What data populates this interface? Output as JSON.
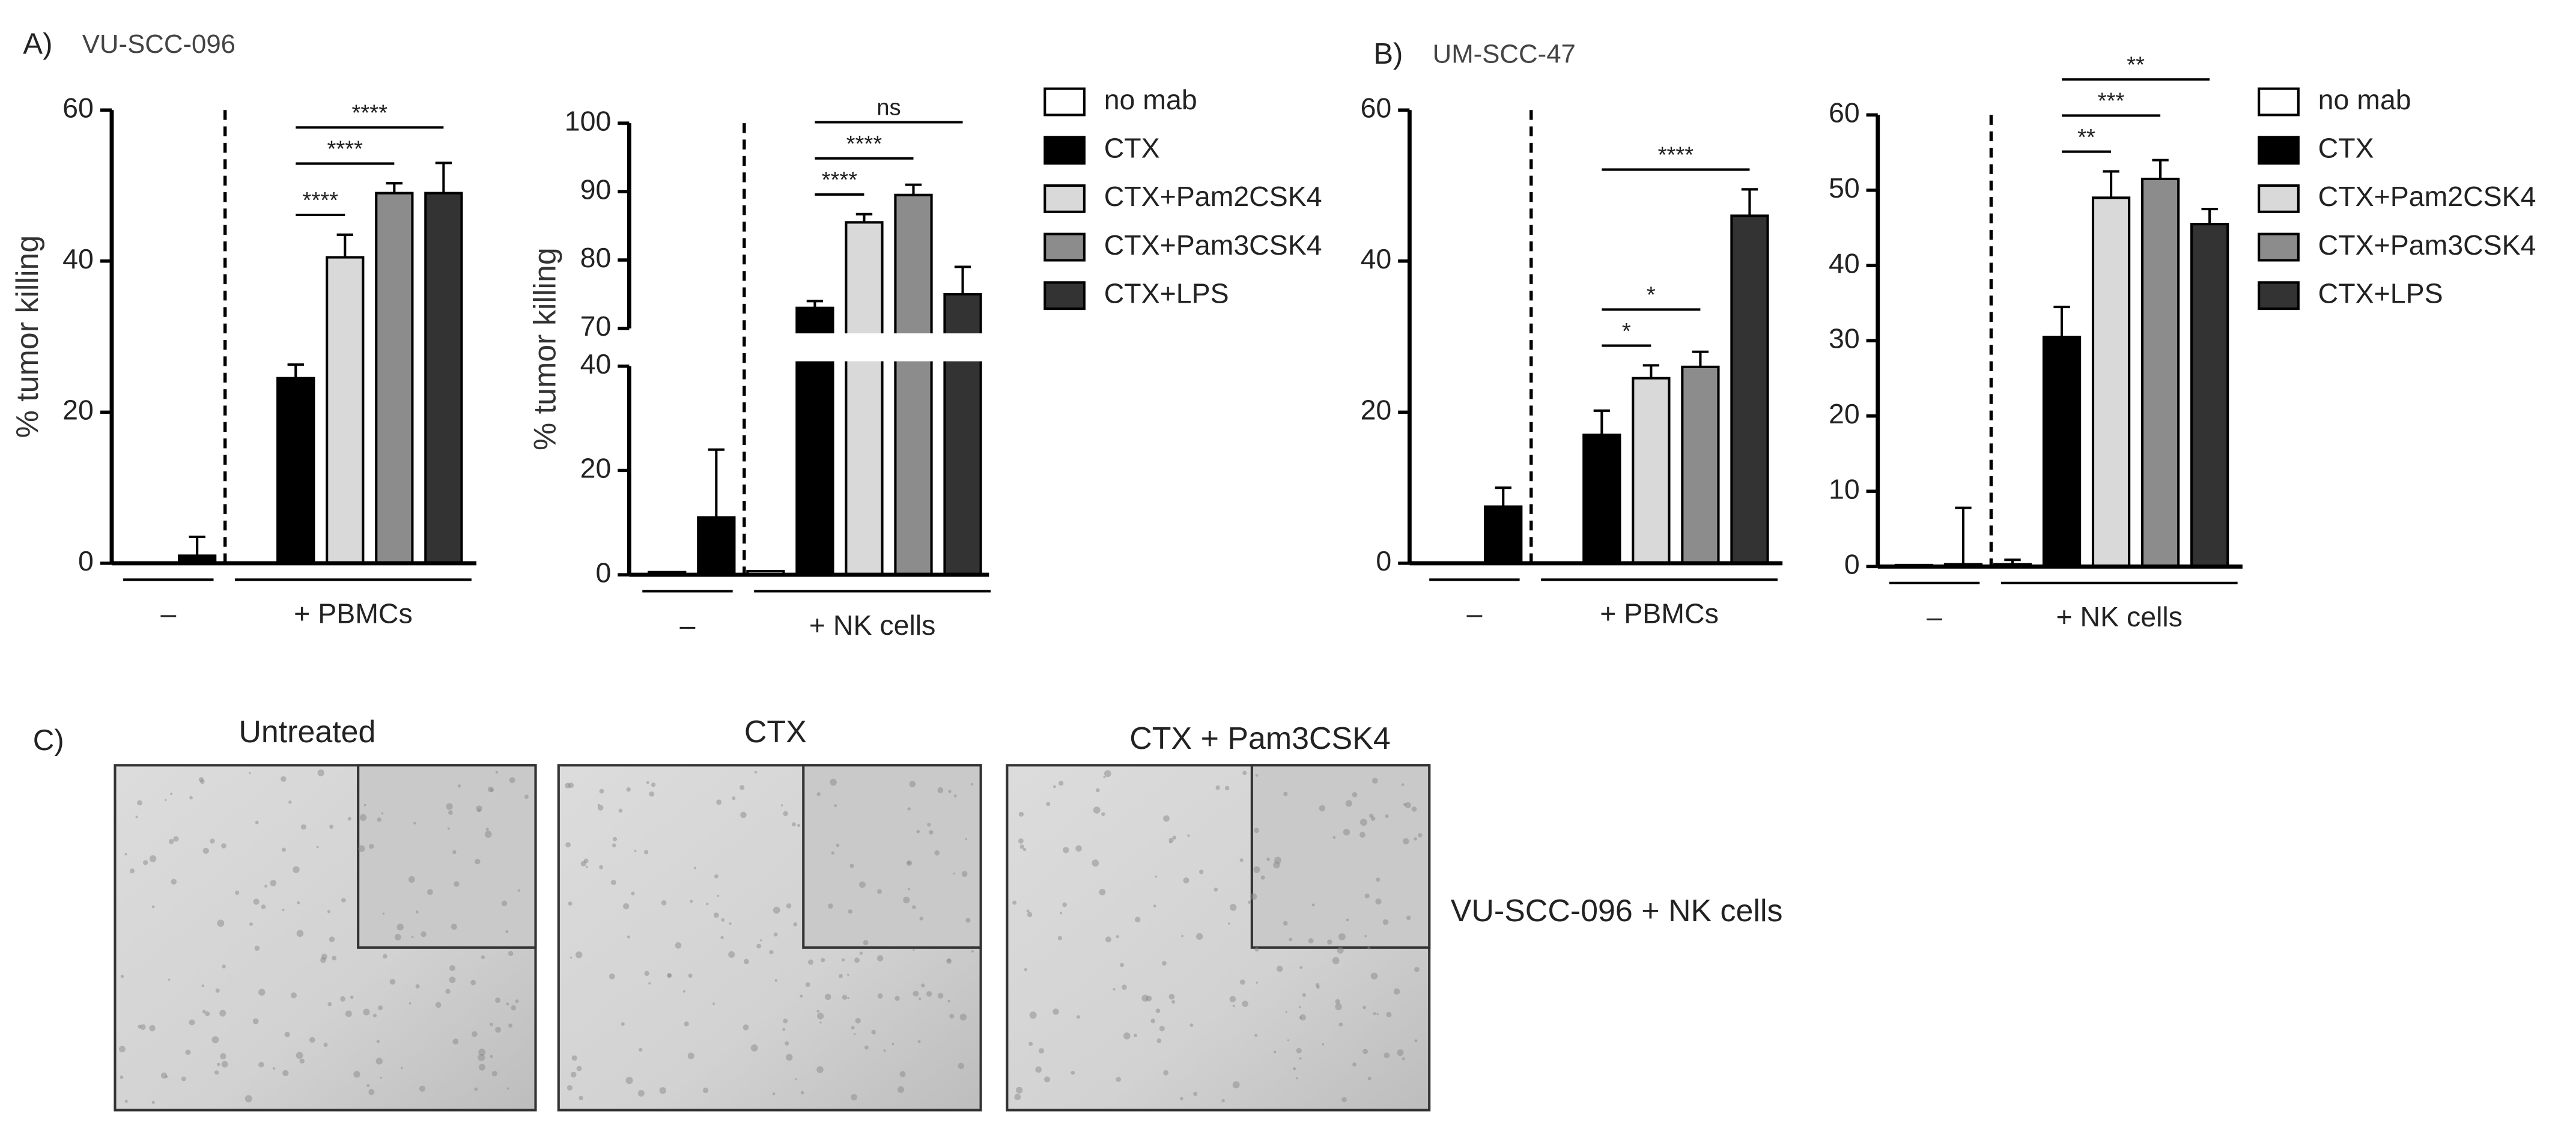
{
  "panels": [
    {
      "label": "A)",
      "title": "VU-SCC-096"
    },
    {
      "label": "B)",
      "title": "UM-SCC-47"
    },
    {
      "label": "C)"
    }
  ],
  "images": [
    {
      "title": "Untreated"
    },
    {
      "title": "CTX"
    },
    {
      "title": "CTX + Pam3CSK4"
    }
  ],
  "images_caption": "VU-SCC-096 + NK cells",
  "chart_data": [
    {
      "type": "bar",
      "y_label": "% tumor killing",
      "categories": [
        "–",
        "+ PBMCs"
      ],
      "ylim": [
        0,
        60
      ],
      "yticks": [
        0,
        20,
        40,
        60
      ],
      "series": [
        {
          "color": "#ffffff",
          "values": [
            0,
            0
          ],
          "errors": [
            null,
            null
          ]
        },
        {
          "color": "#000000",
          "values": [
            1,
            24.5
          ],
          "errors": [
            2.5,
            1.8
          ]
        },
        {
          "color": "#d9d9d9",
          "values": [
            null,
            40.5
          ],
          "errors": [
            null,
            3
          ]
        },
        {
          "color": "#8c8c8c",
          "values": [
            null,
            49
          ],
          "errors": [
            null,
            1.3
          ]
        },
        {
          "color": "#333333",
          "values": [
            null,
            49
          ],
          "errors": [
            null,
            4
          ]
        }
      ],
      "annotations": [
        {
          "label": "****",
          "from": 1,
          "to": 2
        },
        {
          "label": "****",
          "from": 1,
          "to": 3
        },
        {
          "label": "****",
          "from": 1,
          "to": 4
        }
      ]
    },
    {
      "type": "bar",
      "y_label": "% tumor killing",
      "categories": [
        "–",
        "+ NK cells"
      ],
      "ylim": [
        0,
        100
      ],
      "ybreak": [
        40,
        70
      ],
      "yticks": [
        0,
        20,
        40,
        70,
        80,
        90,
        100
      ],
      "legend": "right",
      "series": [
        {
          "name": "no mab",
          "color": "#ffffff",
          "values": [
            0.5,
            0.7
          ],
          "errors": [
            null,
            null
          ]
        },
        {
          "name": "CTX",
          "color": "#000000",
          "values": [
            11,
            73
          ],
          "errors": [
            13,
            1
          ]
        },
        {
          "name": "CTX+Pam2CSK4",
          "color": "#d9d9d9",
          "values": [
            null,
            85.5
          ],
          "errors": [
            null,
            1.2
          ]
        },
        {
          "name": "CTX+Pam3CSK4",
          "color": "#8c8c8c",
          "values": [
            null,
            89.5
          ],
          "errors": [
            null,
            1.5
          ]
        },
        {
          "name": "CTX+LPS",
          "color": "#333333",
          "values": [
            null,
            75
          ],
          "errors": [
            null,
            4
          ]
        }
      ],
      "annotations": [
        {
          "label": "****",
          "from": 1,
          "to": 2
        },
        {
          "label": "****",
          "from": 1,
          "to": 3
        },
        {
          "label": "ns",
          "from": 1,
          "to": 4
        }
      ]
    },
    {
      "type": "bar",
      "categories": [
        "–",
        "+ PBMCs"
      ],
      "ylim": [
        0,
        60
      ],
      "yticks": [
        0,
        20,
        40,
        60
      ],
      "series": [
        {
          "color": "#ffffff",
          "values": [
            0,
            0
          ],
          "errors": [
            null,
            null
          ]
        },
        {
          "color": "#000000",
          "values": [
            7.5,
            17
          ],
          "errors": [
            2.5,
            3.2
          ]
        },
        {
          "color": "#d9d9d9",
          "values": [
            null,
            24.5
          ],
          "errors": [
            null,
            1.7
          ]
        },
        {
          "color": "#8c8c8c",
          "values": [
            null,
            26
          ],
          "errors": [
            null,
            2
          ]
        },
        {
          "color": "#333333",
          "values": [
            null,
            46
          ],
          "errors": [
            null,
            3.5
          ]
        }
      ],
      "annotations": [
        {
          "label": "*",
          "from": 1,
          "to": 2
        },
        {
          "label": "*",
          "from": 1,
          "to": 3
        },
        {
          "label": "****",
          "from": 1,
          "to": 4
        }
      ]
    },
    {
      "type": "bar",
      "categories": [
        "–",
        "+ NK cells"
      ],
      "ylim": [
        0,
        60
      ],
      "yticks": [
        0,
        10,
        20,
        30,
        40,
        50,
        60
      ],
      "legend": "right",
      "series": [
        {
          "name": "no mab",
          "color": "#ffffff",
          "values": [
            0.2,
            0.3
          ],
          "errors": [
            null,
            0.6
          ]
        },
        {
          "name": "CTX",
          "color": "#000000",
          "values": [
            0.3,
            30.5
          ],
          "errors": [
            7.5,
            4
          ]
        },
        {
          "name": "CTX+Pam2CSK4",
          "color": "#d9d9d9",
          "values": [
            null,
            49
          ],
          "errors": [
            null,
            3.5
          ]
        },
        {
          "name": "CTX+Pam3CSK4",
          "color": "#8c8c8c",
          "values": [
            null,
            51.5
          ],
          "errors": [
            null,
            2.5
          ]
        },
        {
          "name": "CTX+LPS",
          "color": "#333333",
          "values": [
            null,
            45.5
          ],
          "errors": [
            null,
            2
          ]
        }
      ],
      "annotations": [
        {
          "label": "**",
          "from": 1,
          "to": 2
        },
        {
          "label": "***",
          "from": 1,
          "to": 3
        },
        {
          "label": "**",
          "from": 1,
          "to": 4
        }
      ]
    }
  ]
}
